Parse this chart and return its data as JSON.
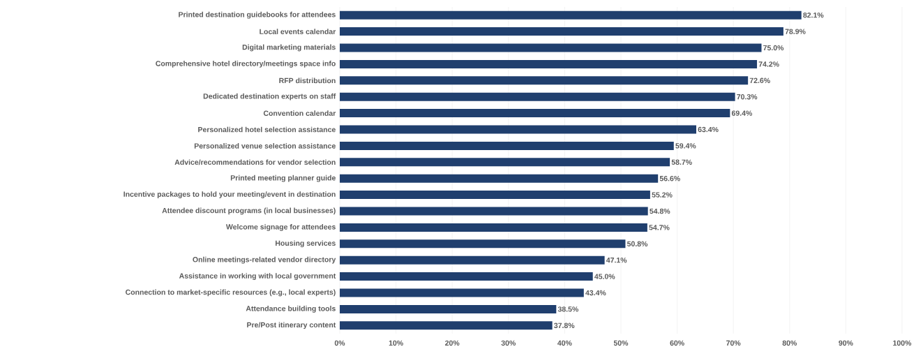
{
  "chart_data": {
    "type": "bar",
    "orientation": "horizontal",
    "categories": [
      "Printed destination guidebooks for attendees",
      "Local events calendar",
      "Digital marketing materials",
      "Comprehensive hotel directory/meetings space info",
      "RFP distribution",
      "Dedicated destination experts on staff",
      "Convention calendar",
      "Personalized hotel selection assistance",
      "Personalized venue selection assistance",
      "Advice/recommendations for vendor selection",
      "Printed meeting planner guide",
      "Incentive packages to hold your meeting/event in destination",
      "Attendee discount programs (in local businesses)",
      "Welcome signage for attendees",
      "Housing services",
      "Online meetings-related vendor directory",
      "Assistance in working with local government",
      "Connection to market-specific resources (e.g., local experts)",
      "Attendance building tools",
      "Pre/Post itinerary content"
    ],
    "values": [
      82.1,
      78.9,
      75.0,
      74.2,
      72.6,
      70.3,
      69.4,
      63.4,
      59.4,
      58.7,
      56.6,
      55.2,
      54.8,
      54.7,
      50.8,
      47.1,
      45.0,
      43.4,
      38.5,
      37.8
    ],
    "value_labels": [
      "82.1%",
      "78.9%",
      "75.0%",
      "74.2%",
      "72.6%",
      "70.3%",
      "69.4%",
      "63.4%",
      "59.4%",
      "58.7%",
      "56.6%",
      "55.2%",
      "54.8%",
      "54.7%",
      "50.8%",
      "47.1%",
      "45.0%",
      "43.4%",
      "38.5%",
      "37.8%"
    ],
    "color": "#203f6e",
    "xlim": [
      0,
      100
    ],
    "xticks": [
      {
        "value": 0,
        "label": "0%"
      },
      {
        "value": 10,
        "label": "10%"
      },
      {
        "value": 20,
        "label": "20%"
      },
      {
        "value": 30,
        "label": "30%"
      },
      {
        "value": 40,
        "label": "40%"
      },
      {
        "value": 50,
        "label": "50%"
      },
      {
        "value": 60,
        "label": "60%"
      },
      {
        "value": 70,
        "label": "70%"
      },
      {
        "value": 80,
        "label": "80%"
      },
      {
        "value": 90,
        "label": "90%"
      },
      {
        "value": 100,
        "label": "100%"
      }
    ],
    "grid": "x"
  }
}
